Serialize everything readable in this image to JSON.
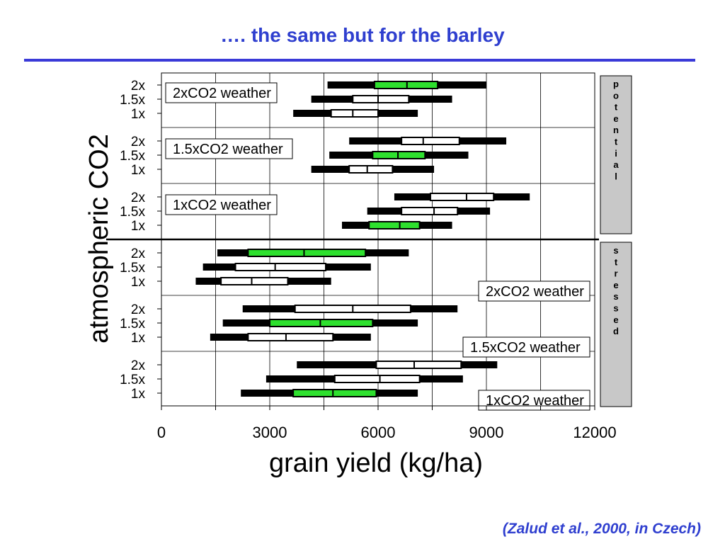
{
  "slide": {
    "title": "…. the same but for the barley",
    "citation": "(Zalud et al., 2000, in Czech)"
  },
  "chart_data": {
    "type": "boxplot",
    "xlabel": "grain yield (kg/ha)",
    "ylabel": "atmospheric CO2",
    "xlim": [
      0,
      12000
    ],
    "xticks": [
      0,
      3000,
      6000,
      9000,
      12000
    ],
    "grid": true,
    "sides": [
      {
        "label": "potential",
        "groups": [
          {
            "label": "2xCO2 weather",
            "rows": [
              {
                "co2": "2x",
                "whisker": [
                  4600,
                  9000
                ],
                "box": [
                  5900,
                  7650
                ],
                "median": 6800,
                "color": "#2ee02e"
              },
              {
                "co2": "1.5x",
                "whisker": [
                  4150,
                  8050
                ],
                "box": [
                  5300,
                  6850
                ],
                "median": 6000,
                "color": "#ffffff"
              },
              {
                "co2": "1x",
                "whisker": [
                  3650,
                  7100
                ],
                "box": [
                  4700,
                  6000
                ],
                "median": 5300,
                "color": "#ffffff"
              }
            ]
          },
          {
            "label": "1.5xCO2 weather",
            "rows": [
              {
                "co2": "2x",
                "whisker": [
                  5200,
                  9550
                ],
                "box": [
                  6650,
                  8250
                ],
                "median": 7250,
                "color": "#ffffff"
              },
              {
                "co2": "1.5x",
                "whisker": [
                  4650,
                  8500
                ],
                "box": [
                  5850,
                  7300
                ],
                "median": 6550,
                "color": "#2ee02e"
              },
              {
                "co2": "1x",
                "whisker": [
                  4150,
                  7550
                ],
                "box": [
                  5200,
                  6400
                ],
                "median": 5700,
                "color": "#ffffff"
              }
            ]
          },
          {
            "label": "1xCO2 weather",
            "rows": [
              {
                "co2": "2x",
                "whisker": [
                  6450,
                  10200
                ],
                "box": [
                  7450,
                  9200
                ],
                "median": 8450,
                "color": "#ffffff"
              },
              {
                "co2": "1.5x",
                "whisker": [
                  5700,
                  9100
                ],
                "box": [
                  6650,
                  8200
                ],
                "median": 7550,
                "color": "#ffffff"
              },
              {
                "co2": "1x",
                "whisker": [
                  5000,
                  8050
                ],
                "box": [
                  5750,
                  7150
                ],
                "median": 6600,
                "color": "#2ee02e"
              }
            ]
          }
        ]
      },
      {
        "label": "stressed",
        "groups": [
          {
            "label": "2xCO2 weather",
            "rows": [
              {
                "co2": "2x",
                "whisker": [
                  1550,
                  6850
                ],
                "box": [
                  2400,
                  5650
                ],
                "median": 3950,
                "color": "#2ee02e"
              },
              {
                "co2": "1.5x",
                "whisker": [
                  1150,
                  5800
                ],
                "box": [
                  2050,
                  4550
                ],
                "median": 3150,
                "color": "#ffffff"
              },
              {
                "co2": "1x",
                "whisker": [
                  950,
                  4700
                ],
                "box": [
                  1650,
                  3500
                ],
                "median": 2500,
                "color": "#ffffff"
              }
            ]
          },
          {
            "label": "1.5xCO2 weather",
            "rows": [
              {
                "co2": "2x",
                "whisker": [
                  2250,
                  8200
                ],
                "box": [
                  3700,
                  6900
                ],
                "median": 5300,
                "color": "#ffffff"
              },
              {
                "co2": "1.5x",
                "whisker": [
                  1700,
                  7100
                ],
                "box": [
                  3000,
                  5850
                ],
                "median": 4400,
                "color": "#2ee02e"
              },
              {
                "co2": "1x",
                "whisker": [
                  1350,
                  5800
                ],
                "box": [
                  2400,
                  4750
                ],
                "median": 3450,
                "color": "#ffffff"
              }
            ]
          },
          {
            "label": "1xCO2 weather",
            "rows": [
              {
                "co2": "2x",
                "whisker": [
                  3750,
                  9300
                ],
                "box": [
                  5950,
                  8300
                ],
                "median": 7000,
                "color": "#ffffff"
              },
              {
                "co2": "1.5x",
                "whisker": [
                  2900,
                  8350
                ],
                "box": [
                  4800,
                  7150
                ],
                "median": 6050,
                "color": "#ffffff"
              },
              {
                "co2": "1x",
                "whisker": [
                  2200,
                  7100
                ],
                "box": [
                  3650,
                  5950
                ],
                "median": 4750,
                "color": "#2ee02e"
              }
            ]
          }
        ]
      }
    ]
  }
}
